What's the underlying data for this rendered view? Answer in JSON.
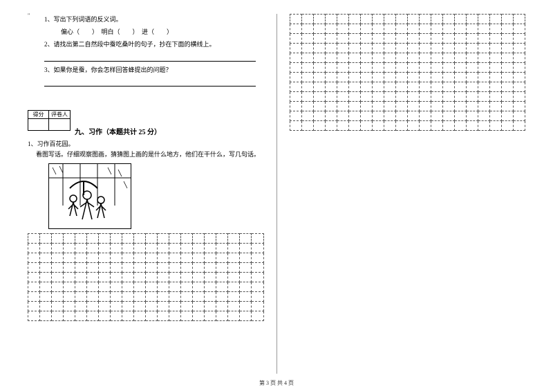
{
  "corner": "\"",
  "q1": {
    "num": "1、",
    "text": "写出下列词语的反义词。",
    "items": "偏心（　　）　明白（　　）　进（　　）"
  },
  "q2": {
    "num": "2、",
    "text": "请找出第二自然段中蚕吃桑叶的句子，抄在下面的横线上。"
  },
  "q3": {
    "num": "3、",
    "text": "如果你是蚕，你会怎样回答蜂提出的问题？"
  },
  "score": {
    "label1": "得分",
    "label2": "评卷人"
  },
  "section9": {
    "title": "九、习作（本题共计 25 分）",
    "sub_num": "1、",
    "sub_title": "习作百花园。",
    "desc": "看图写话。仔细观察图画，猜猜图上画的是什么地方，他们在干什么，写几句话。"
  },
  "grid_left": {
    "rows": 9,
    "cols": 20
  },
  "grid_right": {
    "rows": 12,
    "cols": 20
  },
  "footer": "第 3 页 共 4 页",
  "colors": {
    "border": "#000000",
    "dashed": "#555555",
    "bg": "#ffffff"
  }
}
